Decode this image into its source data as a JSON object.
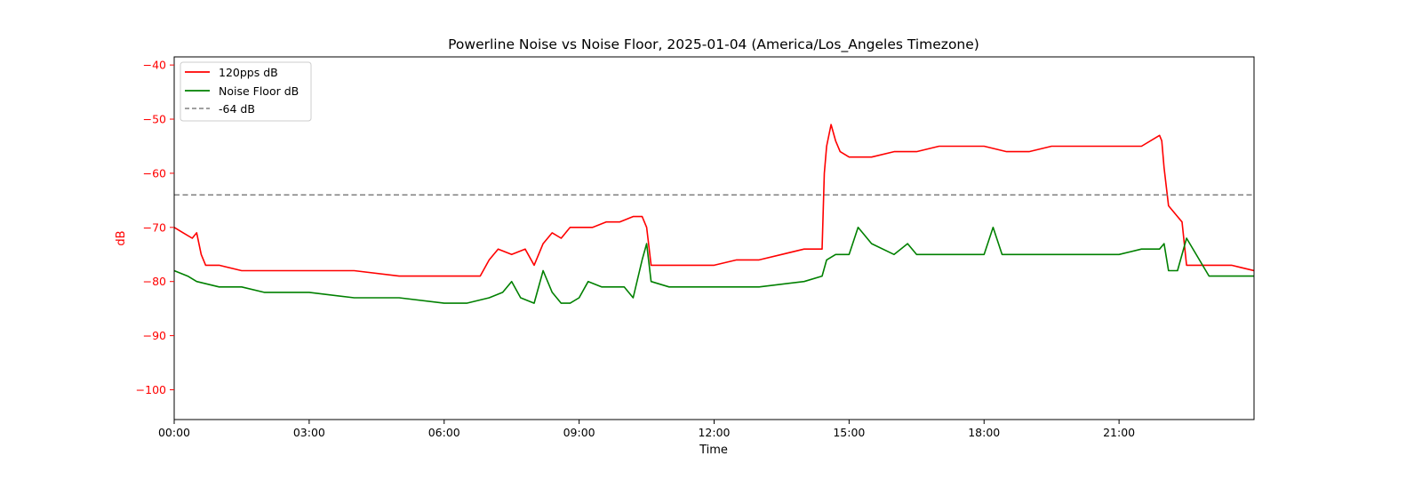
{
  "chart_data": {
    "type": "line",
    "title": "Powerline Noise vs Noise Floor, 2025-01-04 (America/Los_Angeles Timezone)",
    "xlabel": "Time",
    "ylabel": "dB",
    "x_unit": "hours",
    "xlim": [
      0,
      24
    ],
    "ylim": [
      -105.5,
      -38.5
    ],
    "x_ticks": [
      {
        "value": 0,
        "label": "00:00"
      },
      {
        "value": 3,
        "label": "03:00"
      },
      {
        "value": 6,
        "label": "06:00"
      },
      {
        "value": 9,
        "label": "09:00"
      },
      {
        "value": 12,
        "label": "12:00"
      },
      {
        "value": 15,
        "label": "15:00"
      },
      {
        "value": 18,
        "label": "18:00"
      },
      {
        "value": 21,
        "label": "21:00"
      }
    ],
    "y_ticks": [
      {
        "value": -40,
        "label": "−40"
      },
      {
        "value": -50,
        "label": "−50"
      },
      {
        "value": -60,
        "label": "−60"
      },
      {
        "value": -70,
        "label": "−70"
      },
      {
        "value": -80,
        "label": "−80"
      },
      {
        "value": -90,
        "label": "−90"
      },
      {
        "value": -100,
        "label": "−100"
      }
    ],
    "grid": false,
    "legend_position": "top-left",
    "y_axis_color": "#ff0000",
    "series": [
      {
        "name": "120pps dB",
        "color": "#ff0000",
        "style": "solid",
        "x": [
          0,
          0.2,
          0.4,
          0.5,
          0.6,
          0.7,
          1,
          1.5,
          2,
          3,
          4,
          5,
          6,
          6.5,
          6.8,
          7,
          7.2,
          7.5,
          7.8,
          8,
          8.2,
          8.4,
          8.6,
          8.8,
          9,
          9.3,
          9.6,
          9.9,
          10.2,
          10.4,
          10.5,
          10.6,
          11,
          11.5,
          12,
          12.5,
          13,
          13.5,
          14,
          14.4,
          14.45,
          14.5,
          14.6,
          14.7,
          14.8,
          15,
          15.5,
          16,
          16.5,
          17,
          17.5,
          18,
          18.5,
          19,
          19.5,
          20,
          20.5,
          21,
          21.5,
          21.9,
          21.95,
          22,
          22.1,
          22.3,
          22.4,
          22.5,
          23,
          23.5,
          24
        ],
        "y": [
          -70,
          -71,
          -72,
          -71,
          -75,
          -77,
          -77,
          -78,
          -78,
          -78,
          -78,
          -79,
          -79,
          -79,
          -79,
          -76,
          -74,
          -75,
          -74,
          -77,
          -73,
          -71,
          -72,
          -70,
          -70,
          -70,
          -69,
          -69,
          -68,
          -68,
          -70,
          -77,
          -77,
          -77,
          -77,
          -76,
          -76,
          -75,
          -74,
          -74,
          -60,
          -55,
          -51,
          -54,
          -56,
          -57,
          -57,
          -56,
          -56,
          -55,
          -55,
          -55,
          -56,
          -56,
          -55,
          -55,
          -55,
          -55,
          -55,
          -53,
          -54,
          -59,
          -66,
          -68,
          -69,
          -77,
          -77,
          -77,
          -78
        ]
      },
      {
        "name": "Noise Floor dB",
        "color": "#008000",
        "style": "solid",
        "x": [
          0,
          0.3,
          0.5,
          1,
          1.5,
          2,
          3,
          4,
          5,
          6,
          6.5,
          7,
          7.3,
          7.5,
          7.7,
          8,
          8.2,
          8.4,
          8.6,
          8.8,
          9,
          9.2,
          9.5,
          10,
          10.2,
          10.4,
          10.5,
          10.6,
          11,
          12,
          13,
          14,
          14.4,
          14.5,
          14.7,
          15,
          15.2,
          15.5,
          16,
          16.3,
          16.5,
          17,
          17.5,
          18,
          18.2,
          18.4,
          19,
          19.5,
          20,
          20.5,
          21,
          21.5,
          21.9,
          22,
          22.1,
          22.3,
          22.5,
          23,
          23.5,
          24
        ],
        "y": [
          -78,
          -79,
          -80,
          -81,
          -81,
          -82,
          -82,
          -83,
          -83,
          -84,
          -84,
          -83,
          -82,
          -80,
          -83,
          -84,
          -78,
          -82,
          -84,
          -84,
          -83,
          -80,
          -81,
          -81,
          -83,
          -76,
          -73,
          -80,
          -81,
          -81,
          -81,
          -80,
          -79,
          -76,
          -75,
          -75,
          -70,
          -73,
          -75,
          -73,
          -75,
          -75,
          -75,
          -75,
          -70,
          -75,
          -75,
          -75,
          -75,
          -75,
          -75,
          -74,
          -74,
          -73,
          -78,
          -78,
          -72,
          -79,
          -79,
          -79
        ]
      },
      {
        "name": "-64 dB",
        "color": "#808080",
        "style": "dashed",
        "x": [
          0,
          24
        ],
        "y": [
          -64,
          -64
        ]
      }
    ]
  }
}
